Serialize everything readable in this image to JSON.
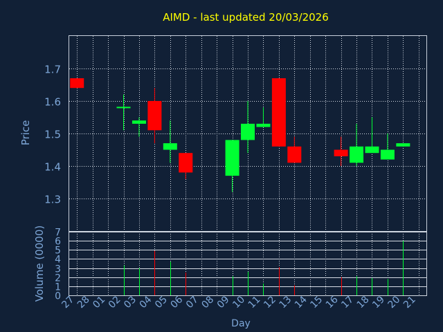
{
  "chart_data": [
    {
      "type": "candlestick",
      "title": "AIMD - last updated 20/03/2026",
      "ylabel": "Price",
      "ylim": [
        1.2,
        1.8
      ],
      "y_ticks": [
        "1.3",
        "1.4",
        "1.5",
        "1.6",
        "1.7"
      ],
      "grid": true,
      "up_color": "#00ff33",
      "down_color": "#ff0000",
      "candles": [
        {
          "day": "27",
          "open": 1.67,
          "close": 1.64,
          "high": 1.67,
          "low": 1.64
        },
        {
          "day": "02",
          "open": 1.58,
          "close": 1.58,
          "high": 1.62,
          "low": 1.51
        },
        {
          "day": "03",
          "open": 1.53,
          "close": 1.54,
          "high": 1.55,
          "low": 1.49
        },
        {
          "day": "04",
          "open": 1.6,
          "close": 1.51,
          "high": 1.64,
          "low": 1.47
        },
        {
          "day": "05",
          "open": 1.45,
          "close": 1.47,
          "high": 1.54,
          "low": 1.41
        },
        {
          "day": "06",
          "open": 1.44,
          "close": 1.38,
          "high": 1.44,
          "low": 1.36
        },
        {
          "day": "09",
          "open": 1.37,
          "close": 1.48,
          "high": 1.48,
          "low": 1.32
        },
        {
          "day": "10",
          "open": 1.48,
          "close": 1.53,
          "high": 1.6,
          "low": 1.44
        },
        {
          "day": "11",
          "open": 1.52,
          "close": 1.53,
          "high": 1.58,
          "low": 1.52
        },
        {
          "day": "12",
          "open": 1.67,
          "close": 1.46,
          "high": 1.67,
          "low": 1.46
        },
        {
          "day": "13",
          "open": 1.46,
          "close": 1.41,
          "high": 1.49,
          "low": 1.41
        },
        {
          "day": "16",
          "open": 1.45,
          "close": 1.43,
          "high": 1.49,
          "low": 1.4
        },
        {
          "day": "17",
          "open": 1.41,
          "close": 1.46,
          "high": 1.53,
          "low": 1.4
        },
        {
          "day": "18",
          "open": 1.44,
          "close": 1.46,
          "high": 1.55,
          "low": 1.44
        },
        {
          "day": "19",
          "open": 1.42,
          "close": 1.45,
          "high": 1.5,
          "low": 1.42
        },
        {
          "day": "20",
          "open": 1.46,
          "close": 1.47,
          "high": 1.47,
          "low": 1.46
        }
      ]
    },
    {
      "type": "bar",
      "ylabel": "Volume (0000)",
      "xlabel": "Day",
      "ylim": [
        0,
        7
      ],
      "y_ticks": [
        "0",
        "1",
        "2",
        "3",
        "4",
        "5",
        "6",
        "7"
      ],
      "grid": true,
      "categories": [
        "27",
        "28",
        "01",
        "02",
        "03",
        "04",
        "05",
        "06",
        "07",
        "08",
        "09",
        "10",
        "11",
        "12",
        "13",
        "14",
        "15",
        "16",
        "17",
        "18",
        "19",
        "20",
        "21"
      ],
      "values": [
        0,
        0,
        0,
        3.3,
        3.0,
        4.9,
        3.7,
        2.5,
        0,
        0,
        2.1,
        2.6,
        1.3,
        3.1,
        1.1,
        0,
        0,
        2.0,
        2.1,
        1.9,
        1.8,
        6.0,
        0
      ],
      "bar_colors": [
        "#ff0000",
        "#ff0000",
        "#ff0000",
        "#00ff33",
        "#00ff33",
        "#ff0000",
        "#00ff33",
        "#ff0000",
        "#ff0000",
        "#ff0000",
        "#00ff33",
        "#00ff33",
        "#00ff33",
        "#ff0000",
        "#ff0000",
        "#ff0000",
        "#ff0000",
        "#ff0000",
        "#00ff33",
        "#00ff33",
        "#00ff33",
        "#00ff33",
        "#00ff33"
      ]
    }
  ]
}
